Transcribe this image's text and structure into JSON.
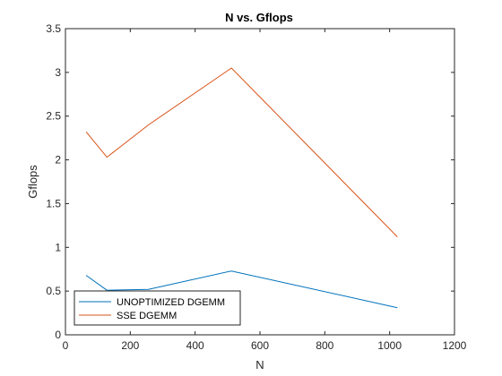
{
  "chart_data": {
    "type": "line",
    "title": "N vs. Gflops",
    "xlabel": "N",
    "ylabel": "Gflops",
    "xlim": [
      0,
      1200
    ],
    "ylim": [
      0,
      3.5
    ],
    "xticks": [
      "0",
      "200",
      "400",
      "600",
      "800",
      "1000",
      "1200"
    ],
    "yticks": [
      "0",
      "0.5",
      "1",
      "1.5",
      "2",
      "2.5",
      "3",
      "3.5"
    ],
    "xtick_values": [
      0,
      200,
      400,
      600,
      800,
      1000,
      1200
    ],
    "ytick_values": [
      0,
      0.5,
      1,
      1.5,
      2,
      2.5,
      3,
      3.5
    ],
    "grid": false,
    "legend_position": "bottom-left",
    "series": [
      {
        "name": "UNOPTIMIZED DGEMM",
        "color": "#0072BD",
        "x": [
          64,
          128,
          256,
          512,
          1024
        ],
        "y": [
          0.68,
          0.51,
          0.52,
          0.73,
          0.31
        ]
      },
      {
        "name": "SSE DGEMM",
        "color": "#D95319",
        "x": [
          64,
          128,
          256,
          512,
          1024
        ],
        "y": [
          2.32,
          2.03,
          2.4,
          3.05,
          1.12
        ]
      }
    ]
  }
}
